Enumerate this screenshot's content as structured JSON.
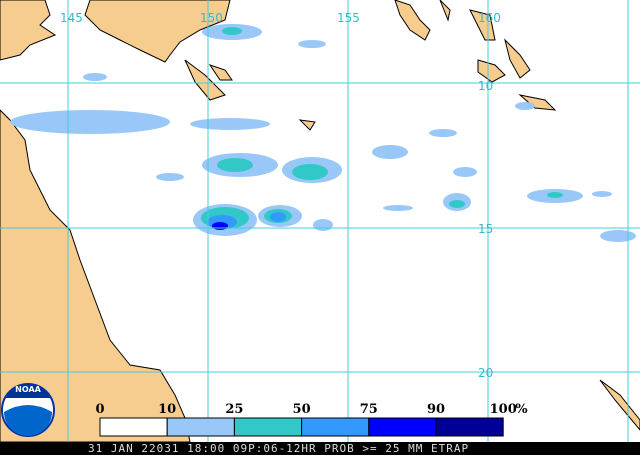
{
  "map": {
    "lon_labels": [
      "145",
      "150",
      "155",
      "160"
    ],
    "lat_labels": [
      "10",
      "15",
      "20"
    ]
  },
  "legend": {
    "ticks": [
      0,
      10,
      25,
      50,
      75,
      90,
      100
    ],
    "unit": "%",
    "colors": [
      "#ffffff",
      "#99c8f8",
      "#33c8c8",
      "#3399ff",
      "#0000ff",
      "#000099"
    ]
  },
  "logo_text": "NOAA",
  "footer": "31 JAN 22031 18:00 09P:06-12HR PROB >= 25 MM ETRAP"
}
